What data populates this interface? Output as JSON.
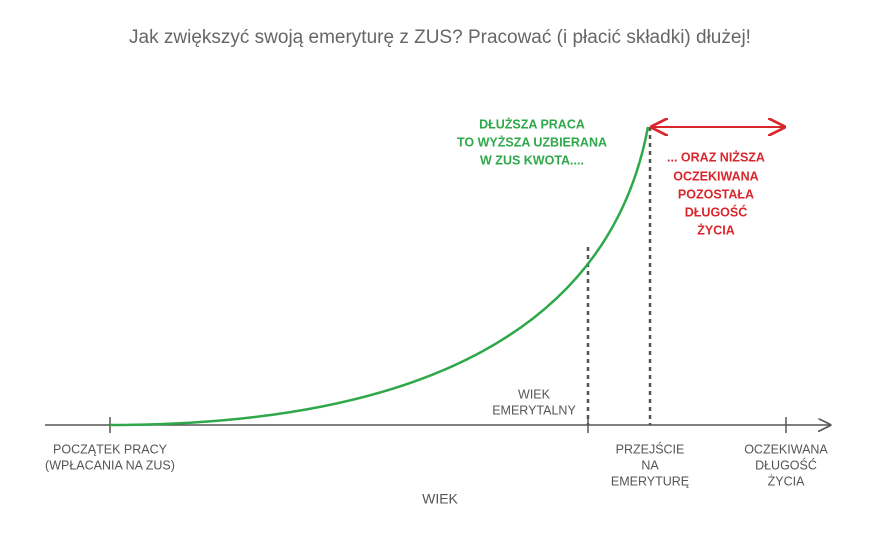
{
  "title": "Jak zwiększyć swoją emeryturę z ZUS? Pracować (i płacić składki) dłużej!",
  "green_note": [
    "DŁUŻSZA PRACA",
    "TO WYŻSZA UZBIERANA",
    "W ZUS KWOTA...."
  ],
  "red_note": [
    "... ORAZ NIŻSZA",
    "OCZEKIWANA",
    "POZOSTAŁA",
    "DŁUGOŚĆ",
    "ŻYCIA"
  ],
  "retirement_age": [
    "WIEK",
    "EMERYTALNY"
  ],
  "axis_points": [
    {
      "lines": [
        "POCZĄTEK PRACY",
        "(WPŁACANIA NA ZUS)"
      ]
    },
    {
      "lines": [
        "PRZEJŚCIE",
        "NA",
        "EMERYTURĘ"
      ]
    },
    {
      "lines": [
        "OCZEKIWANA",
        "DŁUGOŚĆ",
        "ŻYCIA"
      ]
    }
  ],
  "axis_label": "WIEK"
}
